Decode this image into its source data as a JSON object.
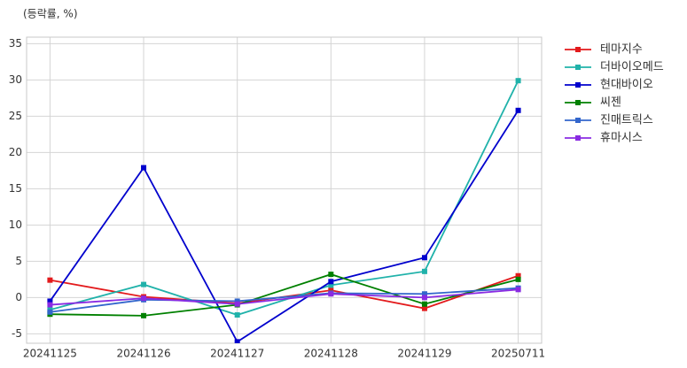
{
  "chart_data": {
    "type": "line",
    "annotation": "(등락률, %)",
    "categories": [
      "20241125",
      "20241126",
      "20241127",
      "20241128",
      "20241129",
      "20250711"
    ],
    "series": [
      {
        "name": "테마지수",
        "color": "#e31a1c",
        "values": [
          2.4,
          0.1,
          -0.8,
          1.0,
          -1.5,
          3.0
        ]
      },
      {
        "name": "더바이오메드",
        "color": "#20b2aa",
        "values": [
          -1.7,
          1.8,
          -2.4,
          1.7,
          3.6,
          29.9
        ]
      },
      {
        "name": "현대바이오",
        "color": "#0000cd",
        "values": [
          -0.5,
          17.9,
          -6.1,
          2.2,
          5.5,
          25.8
        ]
      },
      {
        "name": "씨젠",
        "color": "#008000",
        "values": [
          -2.3,
          -2.5,
          -1.0,
          3.2,
          -0.9,
          2.5
        ]
      },
      {
        "name": "진매트릭스",
        "color": "#3366cc",
        "values": [
          -2.0,
          -0.3,
          -0.5,
          0.6,
          0.5,
          1.3
        ]
      },
      {
        "name": "휴마시스",
        "color": "#8a2be2",
        "values": [
          -1.0,
          -0.1,
          -0.9,
          0.5,
          0.0,
          1.1
        ]
      }
    ],
    "ylim": [
      -6.3,
      35.9
    ],
    "yticks": [
      -5,
      0,
      5,
      10,
      15,
      20,
      25,
      30,
      35
    ],
    "grid": true,
    "legend": "outside right"
  }
}
